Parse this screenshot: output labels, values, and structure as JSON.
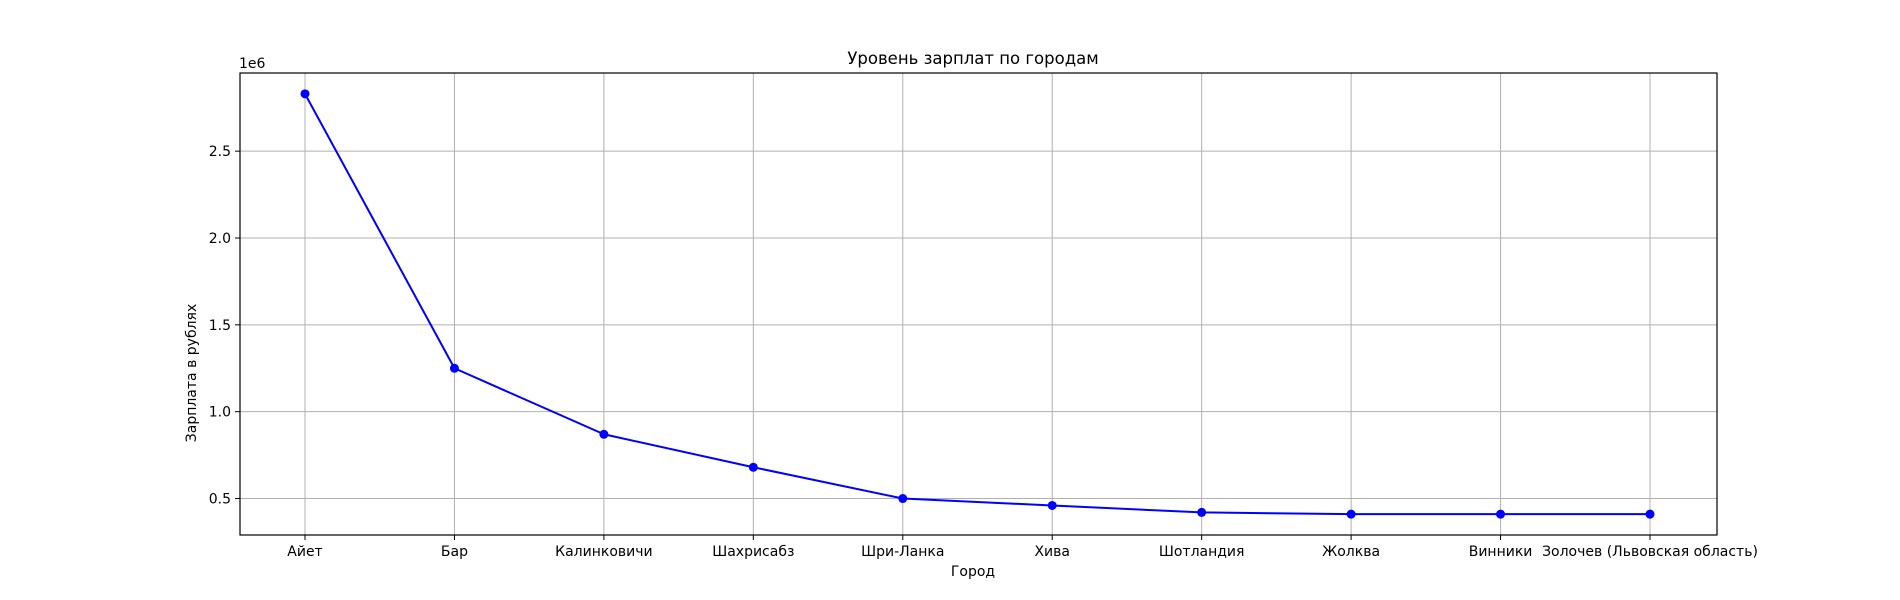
{
  "chart_data": {
    "type": "line",
    "title": "Уровень зарплат по городам",
    "xlabel": "Город",
    "ylabel": "Зарплата в рублях",
    "y_offset_label": "1e6",
    "categories": [
      "Айет",
      "Бар",
      "Калинковичи",
      "Шахрисабз",
      "Шри-Ланка",
      "Хива",
      "Шотландия",
      "Жолква",
      "Винники",
      "Золочев (Львовская область)"
    ],
    "series": [
      {
        "values": [
          2830000,
          1250000,
          870000,
          680000,
          500000,
          460000,
          420000,
          410000,
          410000,
          410000
        ]
      }
    ],
    "ylim": [
      290000,
      2950000
    ],
    "yticks": [
      500000,
      1000000,
      1500000,
      2000000,
      2500000
    ],
    "ytick_labels": [
      "0.5",
      "1.0",
      "1.5",
      "2.0",
      "2.5"
    ],
    "grid": true,
    "colors": {
      "line": "#0000ff",
      "marker": "#0000ff",
      "grid": "#b0b0b0",
      "axes": "#000000"
    }
  }
}
